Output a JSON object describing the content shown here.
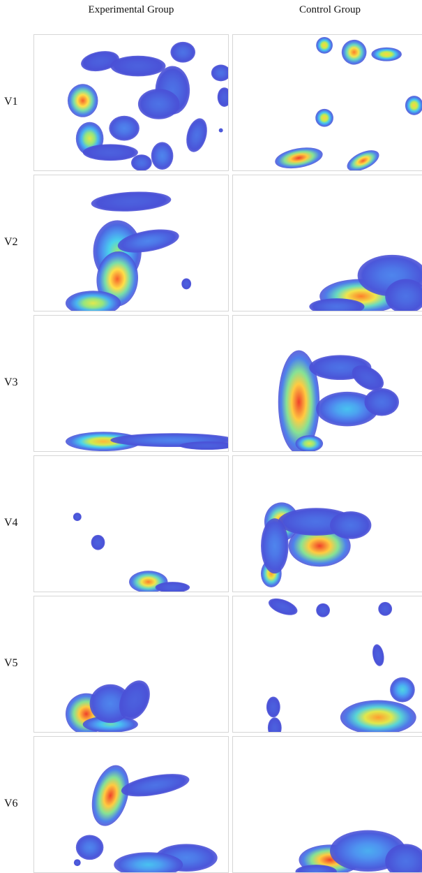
{
  "chart_data": {
    "type": "heatmap",
    "columns": [
      "Experimental Group",
      "Control Group"
    ],
    "rows": [
      "V1",
      "V2",
      "V3",
      "V4",
      "V5",
      "V6"
    ],
    "colormap": [
      "#4a4fd6",
      "#4f8bf0",
      "#46d0f0",
      "#b7ef4f",
      "#ffe34a",
      "#ff8a2a",
      "#e8202a"
    ]
  }
}
